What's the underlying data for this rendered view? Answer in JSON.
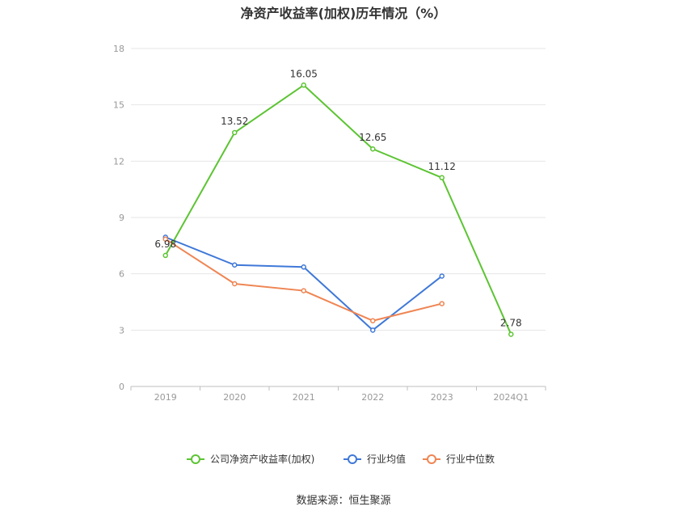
{
  "chart_data": {
    "type": "line",
    "title": "净资产收益率(加权)历年情况（%）",
    "categories": [
      "2019",
      "2020",
      "2021",
      "2022",
      "2023",
      "2024Q1"
    ],
    "ylim": [
      0,
      18
    ],
    "yticks": [
      0,
      3,
      6,
      9,
      12,
      15,
      18
    ],
    "grid": true,
    "legend_position": "bottom",
    "series": [
      {
        "name": "公司净资产收益率(加权)",
        "color": "#5cc433",
        "values": [
          6.98,
          13.52,
          16.05,
          12.65,
          11.12,
          2.78
        ],
        "labels": [
          "6.98",
          "13.52",
          "16.05",
          "12.65",
          "11.12",
          "2.78"
        ]
      },
      {
        "name": "行业均值",
        "color": "#3f78d8",
        "values": [
          7.95,
          6.47,
          6.36,
          3.0,
          5.88,
          null
        ]
      },
      {
        "name": "行业中位数",
        "color": "#ef8553",
        "values": [
          7.85,
          5.47,
          5.1,
          3.5,
          4.41,
          null
        ]
      }
    ]
  },
  "source": "数据来源：恒生聚源"
}
